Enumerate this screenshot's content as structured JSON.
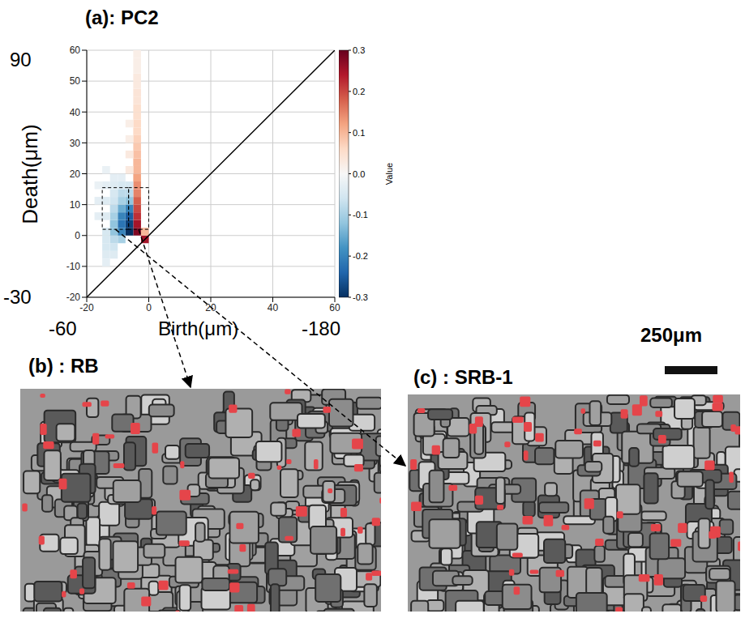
{
  "chart_data": {
    "type": "heatmap",
    "title": "(a): PC2",
    "x_label": "Birth(μm)",
    "y_label": "Death(μm)",
    "xlim": [
      -20,
      60
    ],
    "ylim": [
      -20,
      60
    ],
    "xticks": [
      -20,
      0,
      20,
      40,
      60
    ],
    "yticks": [
      -20,
      -10,
      0,
      10,
      20,
      30,
      40,
      50,
      60
    ],
    "grid": true,
    "outer_x_labels": [
      "-60",
      "-180"
    ],
    "outer_y_labels": [
      "90",
      "-30"
    ],
    "cell_size": 2.5,
    "cells": [
      [
        -5,
        0,
        0.28
      ],
      [
        -5,
        2.5,
        0.25
      ],
      [
        -5,
        5,
        0.22
      ],
      [
        -5,
        7.5,
        0.2
      ],
      [
        -5,
        10,
        0.18
      ],
      [
        -5,
        12.5,
        0.15
      ],
      [
        -5,
        15,
        0.14
      ],
      [
        -5,
        17.5,
        0.12
      ],
      [
        -5,
        20,
        0.1
      ],
      [
        -5,
        22.5,
        0.1
      ],
      [
        -5,
        25,
        0.09
      ],
      [
        -5,
        27.5,
        0.08
      ],
      [
        -5,
        30,
        0.07
      ],
      [
        -5,
        32.5,
        0.06
      ],
      [
        -5,
        35,
        0.06
      ],
      [
        -5,
        37.5,
        0.05
      ],
      [
        -5,
        40,
        0.05
      ],
      [
        -5,
        42.5,
        0.04
      ],
      [
        -5,
        45,
        0.04
      ],
      [
        -5,
        47.5,
        0.03
      ],
      [
        -5,
        50,
        0.03
      ],
      [
        -5,
        52.5,
        0.02
      ],
      [
        -5,
        55,
        0.02
      ],
      [
        -5,
        57.5,
        0.02
      ],
      [
        -2.5,
        -2.5,
        0.25
      ],
      [
        -2.5,
        0,
        0.1
      ],
      [
        -7.5,
        0,
        -0.3
      ],
      [
        -7.5,
        2.5,
        -0.28
      ],
      [
        -7.5,
        5,
        -0.25
      ],
      [
        -7.5,
        7.5,
        -0.2
      ],
      [
        -7.5,
        10,
        -0.12
      ],
      [
        -7.5,
        12.5,
        -0.08
      ],
      [
        -7.5,
        15,
        -0.05
      ],
      [
        -7.5,
        20,
        0.03
      ],
      [
        -7.5,
        25,
        0.03
      ],
      [
        -7.5,
        30,
        0.02
      ],
      [
        -7.5,
        35,
        0.02
      ],
      [
        -10,
        -2.5,
        -0.1
      ],
      [
        -10,
        0,
        -0.2
      ],
      [
        -10,
        2.5,
        -0.22
      ],
      [
        -10,
        5,
        -0.2
      ],
      [
        -10,
        7.5,
        -0.15
      ],
      [
        -10,
        10,
        -0.1
      ],
      [
        -10,
        12.5,
        -0.08
      ],
      [
        -10,
        15,
        -0.05
      ],
      [
        -10,
        17.5,
        -0.03
      ],
      [
        -12.5,
        -7.5,
        -0.04
      ],
      [
        -12.5,
        -5,
        -0.06
      ],
      [
        -12.5,
        -2.5,
        -0.08
      ],
      [
        -12.5,
        0,
        -0.12
      ],
      [
        -12.5,
        2.5,
        -0.12
      ],
      [
        -12.5,
        5,
        -0.1
      ],
      [
        -12.5,
        7.5,
        -0.08
      ],
      [
        -12.5,
        10,
        -0.06
      ],
      [
        -12.5,
        12.5,
        -0.05
      ],
      [
        -12.5,
        15,
        -0.04
      ],
      [
        -12.5,
        17.5,
        -0.03
      ],
      [
        -15,
        -10,
        -0.03
      ],
      [
        -15,
        -7.5,
        -0.04
      ],
      [
        -15,
        -5,
        -0.05
      ],
      [
        -15,
        -2.5,
        -0.05
      ],
      [
        -15,
        0,
        -0.05
      ],
      [
        -15,
        5,
        -0.04
      ],
      [
        -15,
        10,
        -0.04
      ],
      [
        -15,
        15,
        -0.03
      ],
      [
        -15,
        20,
        -0.02
      ],
      [
        -17.5,
        5,
        -0.03
      ],
      [
        -17.5,
        10,
        -0.03
      ],
      [
        -17.5,
        15,
        -0.02
      ]
    ],
    "colorbar": {
      "label": "Value",
      "range": [
        -0.3,
        0.3
      ],
      "ticks": [
        -0.3,
        -0.2,
        -0.1,
        {
          "value": 0,
          "label": "0.0"
        },
        0.1,
        0.2,
        0.3
      ]
    },
    "highlight_boxes": [
      {
        "birth": [
          -6.5,
          0
        ],
        "death": [
          2,
          15.5
        ]
      },
      {
        "birth": [
          -15,
          -6.5
        ],
        "death": [
          2,
          15.5
        ]
      }
    ]
  },
  "panels": [
    {
      "label": "(b) : RB"
    },
    {
      "label": "(c) : SRB-1"
    }
  ],
  "scale_bar": {
    "label": "250μm"
  }
}
